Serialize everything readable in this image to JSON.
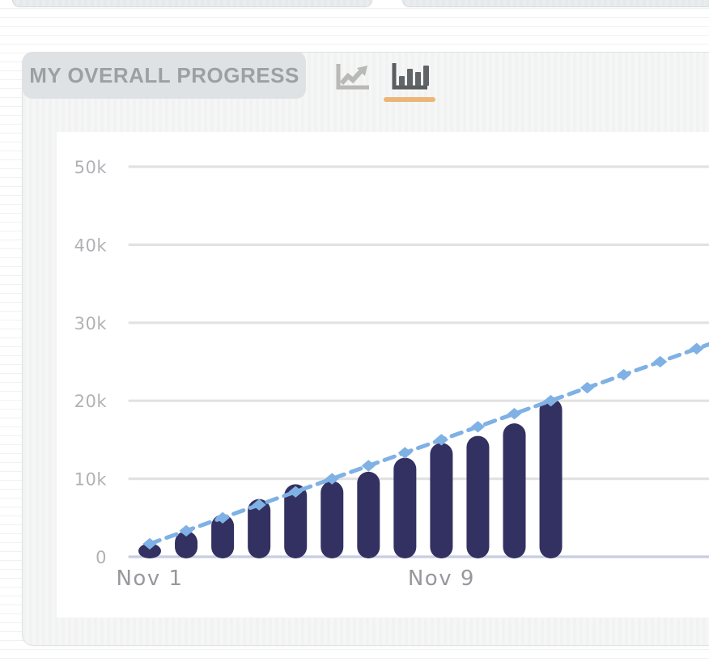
{
  "header": {
    "title": "MY OVERALL PROGRESS"
  },
  "toolbar": {
    "line_chart_button": {
      "icon": "line-chart-icon",
      "selected": false,
      "color": "#b9bab7"
    },
    "bar_chart_button": {
      "icon": "bar-chart-icon",
      "selected": true,
      "color": "#626568"
    },
    "selected_underline_color": "#ecb678"
  },
  "chart_data": {
    "type": "bar",
    "title": "MY OVERALL PROGRESS",
    "grid": "horizontal",
    "y_axis": {
      "min": 0,
      "max": 50000,
      "ticks": [
        {
          "value": 0,
          "label": "0"
        },
        {
          "value": 10000,
          "label": "10k"
        },
        {
          "value": 20000,
          "label": "20k"
        },
        {
          "value": 30000,
          "label": "30k"
        },
        {
          "value": 40000,
          "label": "40k"
        },
        {
          "value": 50000,
          "label": "50k"
        }
      ]
    },
    "x_axis": {
      "unit": "day of November",
      "tick_labels": [
        {
          "day": 1,
          "label": "Nov 1"
        },
        {
          "day": 9,
          "label": "Nov 9"
        }
      ]
    },
    "series": [
      {
        "name": "cumulative-words",
        "type": "bar",
        "color": "#333161",
        "days": [
          1,
          2,
          3,
          4,
          5,
          6,
          7,
          8,
          9,
          10,
          11,
          12
        ],
        "values": [
          1700,
          3300,
          5400,
          7400,
          9300,
          9700,
          10900,
          12700,
          14600,
          15500,
          17100,
          20300
        ]
      },
      {
        "name": "daily-goal",
        "type": "line",
        "line_style": "dashed",
        "marker": "diamond",
        "color": "#7fb1e4",
        "days": [
          1,
          2,
          3,
          4,
          5,
          6,
          7,
          8,
          9,
          10,
          11,
          12,
          13,
          14,
          15,
          16
        ],
        "values": [
          1667,
          3334,
          5001,
          6668,
          8335,
          10002,
          11669,
          13336,
          15003,
          16670,
          18337,
          20004,
          21671,
          23338,
          25005,
          26672
        ]
      }
    ],
    "style": {
      "grid_color": "#e2e2e2",
      "zero_line_color": "#c8cde1",
      "y_label_color": "#b2b2b6",
      "x_label_color": "#97979d",
      "panel_background": "#ffffff"
    }
  }
}
